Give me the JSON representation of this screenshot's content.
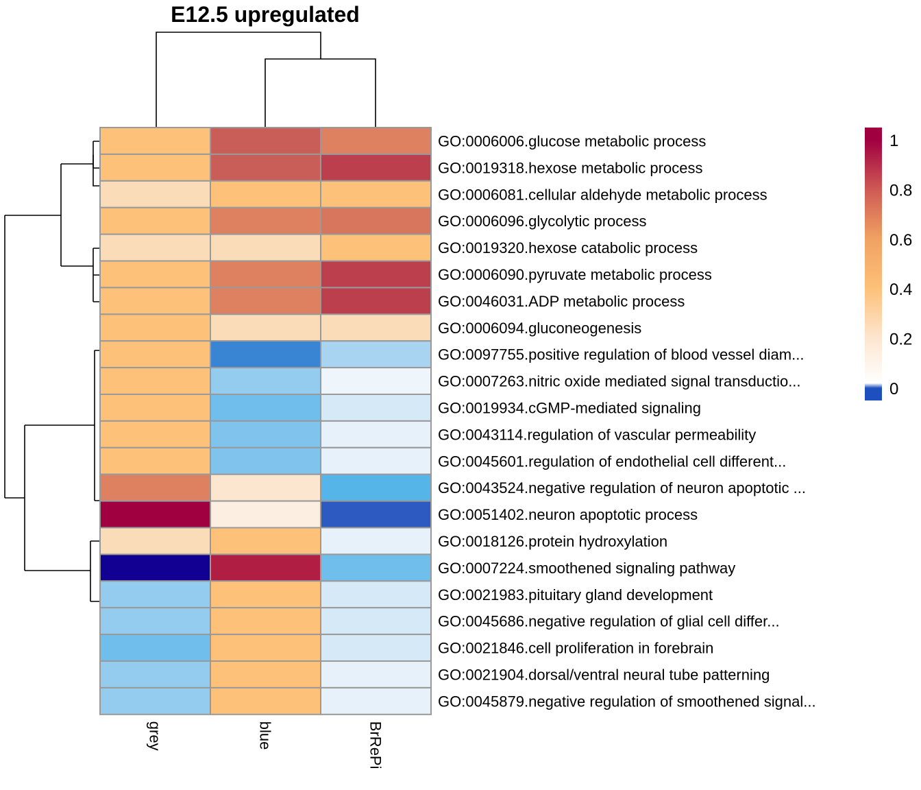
{
  "chart_data": {
    "type": "heatmap",
    "title": "E12.5 upregulated",
    "columns": [
      "grey",
      "blue",
      "BrRePi"
    ],
    "rows": [
      "GO:0006006.glucose metabolic process",
      "GO:0019318.hexose metabolic process",
      "GO:0006081.cellular aldehyde metabolic process",
      "GO:0006096.glycolytic process",
      "GO:0019320.hexose catabolic process",
      "GO:0006090.pyruvate metabolic process",
      "GO:0046031.ADP metabolic process",
      "GO:0006094.gluconeogenesis",
      "GO:0097755.positive regulation of blood vessel diam...",
      "GO:0007263.nitric oxide mediated signal transductio...",
      "GO:0019934.cGMP-mediated signaling",
      "GO:0043114.regulation of vascular permeability",
      "GO:0045601.regulation of endothelial cell different...",
      "GO:0043524.negative regulation of neuron apoptotic ...",
      "GO:0051402.neuron apoptotic process",
      "GO:0018126.protein hydroxylation",
      "GO:0007224.smoothened signaling pathway",
      "GO:0021983.pituitary gland development",
      "GO:0045686.negative regulation of glial cell differ...",
      "GO:0021846.cell proliferation in forebrain",
      "GO:0021904.dorsal/ventral neural tube patterning",
      "GO:0045879.negative regulation of smoothened signal..."
    ],
    "values": [
      [
        0.45,
        0.85,
        0.7
      ],
      [
        0.45,
        0.85,
        0.95
      ],
      [
        0.27,
        0.45,
        0.45
      ],
      [
        0.45,
        0.7,
        0.75
      ],
      [
        0.27,
        0.27,
        0.45
      ],
      [
        0.45,
        0.7,
        0.95
      ],
      [
        0.45,
        0.7,
        0.95
      ],
      [
        0.45,
        0.27,
        0.27
      ],
      [
        0.45,
        -0.22,
        -0.06
      ],
      [
        0.45,
        -0.08,
        -0.01
      ],
      [
        0.45,
        -0.12,
        -0.04
      ],
      [
        0.45,
        -0.1,
        -0.02
      ],
      [
        0.45,
        -0.1,
        -0.02
      ],
      [
        0.7,
        0.2,
        -0.15
      ],
      [
        1.05,
        0.12,
        -0.3
      ],
      [
        0.27,
        0.45,
        -0.02
      ],
      [
        -0.5,
        1.0,
        -0.12
      ],
      [
        -0.08,
        0.45,
        -0.04
      ],
      [
        -0.08,
        0.45,
        -0.04
      ],
      [
        -0.12,
        0.45,
        -0.04
      ],
      [
        -0.08,
        0.45,
        -0.02
      ],
      [
        -0.08,
        0.45,
        -0.02
      ]
    ],
    "legend": {
      "ticks": [
        0,
        0.2,
        0.4,
        0.6,
        0.8,
        1
      ],
      "tick_labels": [
        "0",
        "0.2",
        "0.4",
        "0.6",
        "0.8",
        "1"
      ],
      "range": [
        -0.05,
        1.05
      ],
      "position": "right"
    },
    "row_dendrogram": "left",
    "column_dendrogram": "top"
  },
  "colors": {
    "cell_border": "#999999",
    "scale": [
      [
        -0.5,
        "#120092"
      ],
      [
        -0.3,
        "#2d5ac0"
      ],
      [
        -0.22,
        "#3a84d4"
      ],
      [
        -0.15,
        "#55b4e8"
      ],
      [
        -0.1,
        "#80c4ee"
      ],
      [
        -0.06,
        "#a8d4f2"
      ],
      [
        -0.04,
        "#d6e9f7"
      ],
      [
        -0.01,
        "#eef5fb"
      ],
      [
        0.12,
        "#fdeee2"
      ],
      [
        0.2,
        "#fde6d0"
      ],
      [
        0.27,
        "#fbdcb8"
      ],
      [
        0.45,
        "#fdc17a"
      ],
      [
        0.7,
        "#de8160"
      ],
      [
        0.85,
        "#c95e58"
      ],
      [
        0.95,
        "#bc3f4e"
      ],
      [
        1.0,
        "#b01f43"
      ],
      [
        1.05,
        "#a00040"
      ]
    ],
    "legend_gradient": [
      [
        0,
        "#1d4fbf"
      ],
      [
        0.02,
        "#ffffff"
      ],
      [
        0.2,
        "#fde6d0"
      ],
      [
        0.4,
        "#fdc17a"
      ],
      [
        0.6,
        "#f0a262"
      ],
      [
        0.8,
        "#cf5a55"
      ],
      [
        1.0,
        "#a00040"
      ]
    ]
  }
}
